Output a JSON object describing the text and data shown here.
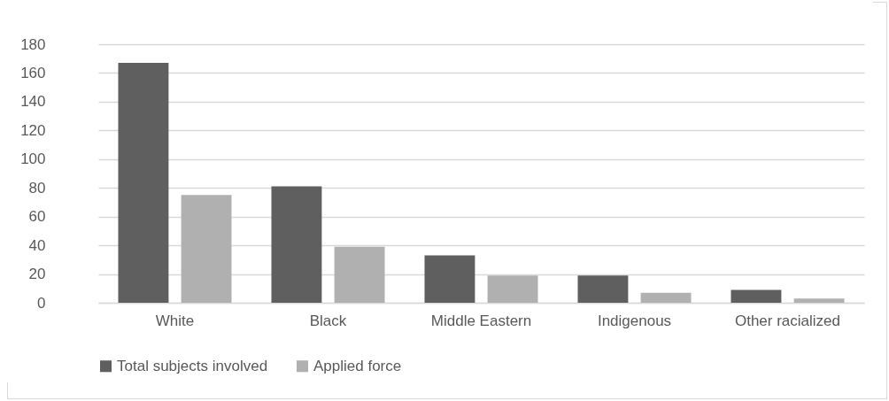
{
  "chart_data": {
    "type": "bar",
    "categories": [
      "White",
      "Black",
      "Middle Eastern",
      "Indigenous",
      "Other racialized"
    ],
    "series": [
      {
        "name": "Total subjects involved",
        "color": "#5f5f5f",
        "values": [
          167,
          81,
          33,
          19,
          9
        ]
      },
      {
        "name": "Applied force",
        "color": "#b0b0b0",
        "values": [
          75,
          39,
          19,
          7,
          3
        ]
      }
    ],
    "ylim": [
      0,
      180
    ],
    "yticks": [
      0,
      20,
      40,
      60,
      80,
      100,
      120,
      140,
      160,
      180
    ],
    "grid": "y",
    "legend": "bottom"
  }
}
